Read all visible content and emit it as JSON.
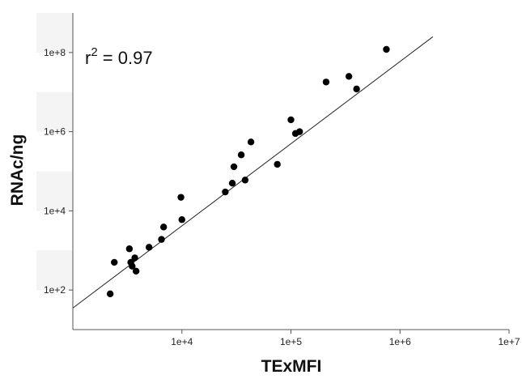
{
  "chart_data": {
    "type": "scatter",
    "title": "",
    "xlabel": "TExMFI",
    "ylabel": "RNAc/ng",
    "x_scale": "log",
    "y_scale": "log",
    "xlim": [
      1000,
      10000000
    ],
    "ylim": [
      10,
      1000000000
    ],
    "x_ticks": [
      10000,
      100000,
      1000000,
      10000000
    ],
    "x_tick_labels": [
      "1e+4",
      "1e+5",
      "1e+6",
      "1e+7"
    ],
    "y_ticks": [
      100,
      10000,
      1000000,
      100000000
    ],
    "y_tick_labels": [
      "1e+2",
      "1e+4",
      "1e+6",
      "1e+8"
    ],
    "grid": false,
    "annotation": {
      "base": "r",
      "exponent": "2",
      "rest": " = 0.97"
    },
    "fit_line": {
      "x": [
        1000,
        2000000
      ],
      "y": [
        35,
        250000000
      ]
    },
    "points": {
      "x": [
        2200,
        2400,
        3300,
        3400,
        3500,
        3700,
        3800,
        5000,
        6500,
        6800,
        9800,
        10000,
        25000,
        29000,
        30000,
        35000,
        38000,
        43000,
        75000,
        100000,
        110000,
        120000,
        210000,
        340000,
        400000,
        750000
      ],
      "y": [
        80,
        500,
        1100,
        500,
        400,
        650,
        300,
        1200,
        1900,
        3900,
        22000,
        6000,
        30000,
        50000,
        130000,
        260000,
        60000,
        550000,
        150000,
        2000000,
        900000,
        1000000,
        18000000,
        25000000,
        12000000,
        120000000
      ]
    },
    "colors": {
      "points": "#000000",
      "line": "#222222",
      "axis": "#555555",
      "band": "#f4f4f4"
    }
  }
}
